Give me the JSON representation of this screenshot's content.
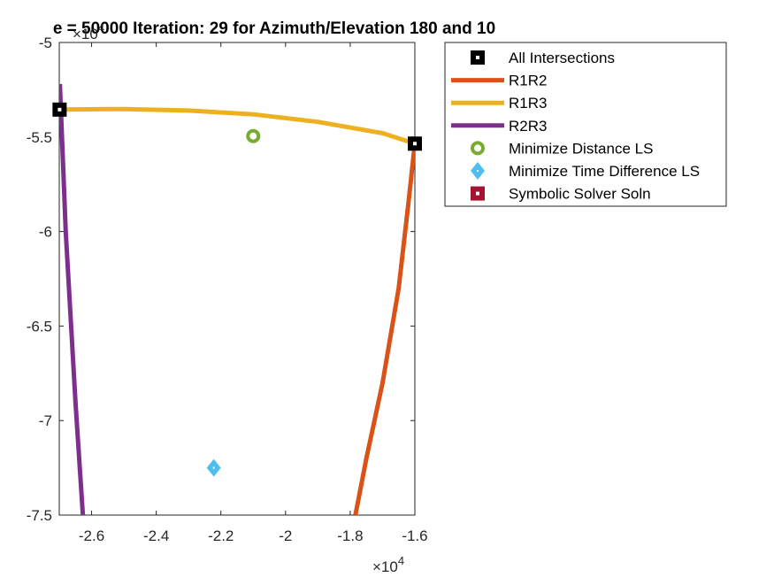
{
  "chart_data": {
    "type": "line",
    "title": "e = 50000 Iteration: 29 for Azimuth/Elevation 180 and 10",
    "xlabel": "",
    "ylabel": "",
    "x_exponent_label": "×10",
    "x_exponent_power": "4",
    "y_exponent_label": "×10",
    "y_exponent_power": "4",
    "xlim": [
      -2.7,
      -1.6
    ],
    "ylim": [
      -7.5,
      -5
    ],
    "x_ticks": [
      -2.6,
      -2.4,
      -2.2,
      -2,
      -1.8,
      -1.6
    ],
    "x_tick_labels": [
      "-2.6",
      "-2.4",
      "-2.2",
      "-2",
      "-1.8",
      "-1.6"
    ],
    "y_ticks": [
      -5,
      -5.5,
      -6,
      -6.5,
      -7,
      -7.5
    ],
    "y_tick_labels": [
      "-5",
      "-5.5",
      "-6",
      "-6.5",
      "-7",
      "-7.5"
    ],
    "grid": false,
    "legend_position": "outside-top-right",
    "series": [
      {
        "name": "All Intersections",
        "kind": "marker",
        "marker": "square",
        "color": "#000000",
        "points": [
          [
            -2.699,
            -5.355
          ],
          [
            -1.6,
            -5.535
          ]
        ]
      },
      {
        "name": "R1R2",
        "kind": "line",
        "color": "#D95319",
        "points": [
          [
            -1.6,
            -5.535
          ],
          [
            -1.62,
            -5.85
          ],
          [
            -1.65,
            -6.3
          ],
          [
            -1.7,
            -6.8
          ],
          [
            -1.75,
            -7.2
          ],
          [
            -1.784,
            -7.5
          ]
        ]
      },
      {
        "name": "R1R3",
        "kind": "line",
        "color": "#EDB120",
        "points": [
          [
            -2.699,
            -5.355
          ],
          [
            -2.5,
            -5.352
          ],
          [
            -2.3,
            -5.36
          ],
          [
            -2.1,
            -5.38
          ],
          [
            -1.9,
            -5.42
          ],
          [
            -1.7,
            -5.48
          ],
          [
            -1.6,
            -5.535
          ]
        ]
      },
      {
        "name": "R2R3",
        "kind": "line",
        "color": "#7E2F8E",
        "points": [
          [
            -2.698,
            -5.22
          ],
          [
            -2.68,
            -6.0
          ],
          [
            -2.65,
            -6.9
          ],
          [
            -2.627,
            -7.5
          ]
        ]
      },
      {
        "name": "Minimize Distance LS",
        "kind": "marker",
        "marker": "circle",
        "color": "#77AC30",
        "points": [
          [
            -2.1,
            -5.495
          ]
        ]
      },
      {
        "name": "Minimize Time Difference LS",
        "kind": "marker",
        "marker": "diamond",
        "color": "#4DBEEE",
        "points": [
          [
            -2.222,
            -7.25
          ]
        ]
      },
      {
        "name": "Symbolic Solver Soln",
        "kind": "marker",
        "marker": "square",
        "color": "#A2142F",
        "points": []
      }
    ]
  }
}
